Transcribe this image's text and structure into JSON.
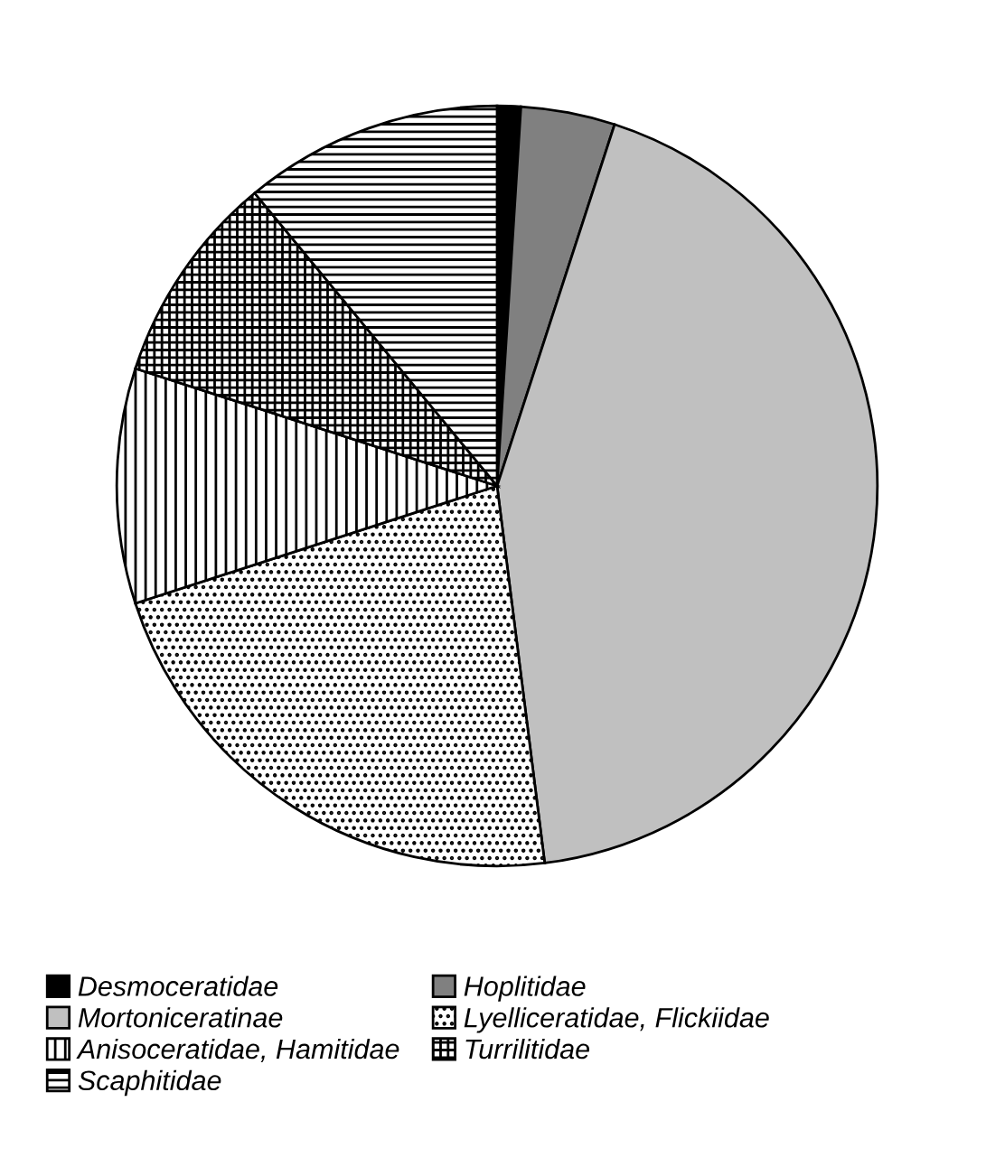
{
  "chart_data": {
    "type": "pie",
    "categories": [
      "Desmoceratidae",
      "Hoplitidae",
      "Mortoniceratinae",
      "Lyelliceratidae, Flickiidae",
      "Anisoceratidae, Hamitidae",
      "Turrilitidae",
      "Scaphitidae"
    ],
    "values": [
      1,
      4,
      43,
      22,
      10,
      9,
      11
    ],
    "colors": [
      "#000000",
      "#808080",
      "#c0c0c0",
      "#000000",
      "#000000",
      "#000000",
      "#000000"
    ],
    "legend": "bottom"
  }
}
